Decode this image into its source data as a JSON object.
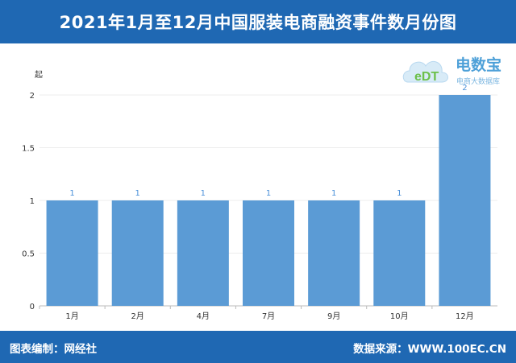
{
  "header": {
    "title": "2021年1月至12月中国服装电商融资事件数月份图"
  },
  "logo": {
    "mark": "eDT",
    "name": "电数宝",
    "sub": "电商大数据库"
  },
  "footer": {
    "left": "图表编制：网经社",
    "right": "数据来源：WWW.100EC.CN"
  },
  "colors": {
    "header_bg": "#1f68b3",
    "bar": "#5b9bd5",
    "label": "#4a90d9"
  },
  "chart_data": {
    "type": "bar",
    "title": "2021年1月至12月中国服装电商融资事件数月份图",
    "ylabel": "起",
    "categories": [
      "1月",
      "2月",
      "4月",
      "7月",
      "9月",
      "10月",
      "12月"
    ],
    "values": [
      1,
      1,
      1,
      1,
      1,
      1,
      2
    ],
    "data_labels": [
      "1",
      "1",
      "1",
      "1",
      "1",
      "1",
      "2"
    ],
    "yticks": [
      "0",
      "0.5",
      "1",
      "1.5",
      "2"
    ],
    "ylim": [
      0,
      2
    ],
    "grid": true
  }
}
